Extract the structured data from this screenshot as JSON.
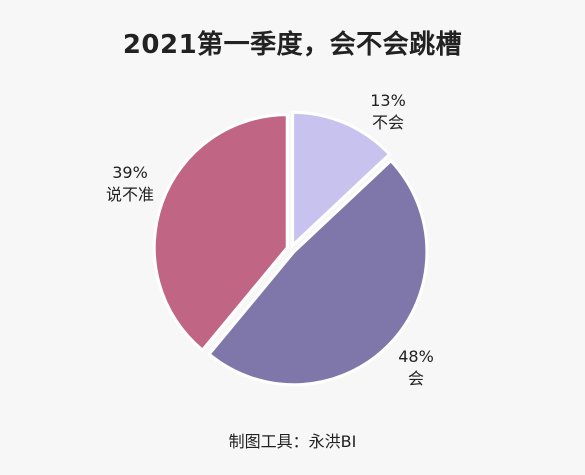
{
  "chart_data": {
    "type": "pie",
    "title": "2021第一季度，会不会跳槽",
    "slices": [
      {
        "label": "不会",
        "value": 13,
        "pct_label": "13%",
        "color": "#c7c2ee"
      },
      {
        "label": "会",
        "value": 48,
        "pct_label": "48%",
        "color": "#7f76a9"
      },
      {
        "label": "说不准",
        "value": 39,
        "pct_label": "39%",
        "color": "#c06583"
      }
    ]
  },
  "footer": "制图工具：永洪BI"
}
